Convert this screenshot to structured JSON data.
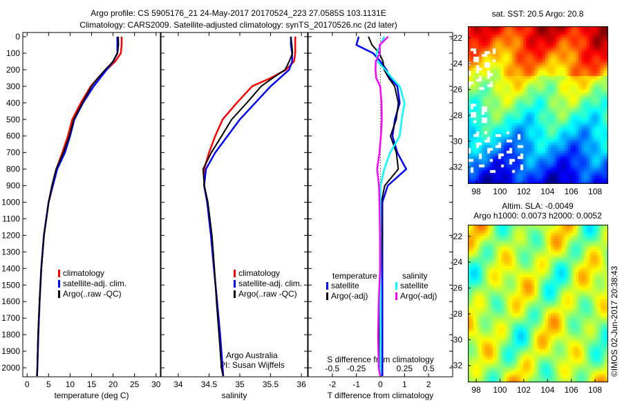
{
  "title_line1": "Argo profile: CS 5905176_21 24-May-2017 20170524_223 27.0585S 103.1131E",
  "title_line2": "Climatology: CARS2009. Satellite-adjusted climatology: synTS_20170526.nc (2d later)",
  "credit": "Argo Australia",
  "pi": "PI: Susan Wijffels",
  "stamp": "©IMOS 02-Jun-2017 20:38:43",
  "chart_data": [
    {
      "type": "line",
      "name": "temperature",
      "xlabel": "temperature (deg C)",
      "xlim": [
        -1,
        31
      ],
      "xticks": [
        "0",
        "5",
        "10",
        "15",
        "20",
        "25",
        "30"
      ],
      "ylim": [
        0,
        2070
      ],
      "yticks": [
        "0",
        "100",
        "200",
        "300",
        "400",
        "500",
        "600",
        "700",
        "800",
        "900",
        "1000",
        "1100",
        "1200",
        "1300",
        "1400",
        "1500",
        "1600",
        "1700",
        "1800",
        "1900",
        "2000"
      ],
      "depth": [
        0,
        50,
        100,
        150,
        200,
        250,
        300,
        400,
        500,
        600,
        700,
        800,
        900,
        1000,
        1200,
        1400,
        1600,
        1800,
        2000,
        2050
      ],
      "legend": [
        "climatology",
        "satellite-adj. clim.",
        "Argo(..raw -QC)"
      ],
      "series": [
        {
          "name": "climatology",
          "color": "#ff0000",
          "values": [
            22,
            22,
            21.8,
            20.5,
            18.5,
            16.5,
            14.8,
            12.5,
            10.5,
            9.5,
            8.2,
            6.8,
            5.8,
            5,
            3.9,
            3.3,
            2.9,
            2.6,
            2.4,
            2.3
          ]
        },
        {
          "name": "satellite-adj. clim.",
          "color": "#0000ff",
          "values": [
            21,
            21,
            21,
            20,
            18.5,
            17,
            15.5,
            13,
            11,
            10,
            8.8,
            7,
            6,
            5,
            3.9,
            3.3,
            2.9,
            2.6,
            2.4,
            2.3
          ]
        },
        {
          "name": "Argo(..raw -QC)",
          "color": "#000000",
          "values": [
            21.2,
            21.2,
            21,
            20,
            18.2,
            16.5,
            15,
            12.8,
            10.8,
            9.8,
            8.5,
            6.8,
            5.8,
            5,
            3.9,
            3.3,
            2.9,
            2.6,
            2.4,
            2.3
          ]
        }
      ]
    },
    {
      "type": "line",
      "name": "salinity",
      "xlabel": "salinity",
      "xlim": [
        33.72,
        36.1
      ],
      "xticks": [
        "34",
        "34.5",
        "35",
        "35.5",
        "36"
      ],
      "ylim": [
        0,
        2070
      ],
      "depth": [
        0,
        50,
        100,
        150,
        200,
        250,
        300,
        400,
        500,
        600,
        700,
        800,
        900,
        1000,
        1200,
        1400,
        1600,
        1800,
        2000,
        2050
      ],
      "legend": [
        "climatology",
        "satellite-adj. clim.",
        "Argo(..raw -QC)"
      ],
      "series": [
        {
          "name": "climatology",
          "color": "#ff0000",
          "values": [
            35.9,
            35.9,
            35.9,
            35.88,
            35.75,
            35.5,
            35.2,
            34.95,
            34.72,
            34.6,
            34.5,
            34.42,
            34.42,
            34.47,
            34.53,
            34.58,
            34.63,
            34.68,
            34.72,
            34.73
          ]
        },
        {
          "name": "satellite-adj. clim.",
          "color": "#0000ff",
          "values": [
            35.83,
            35.83,
            35.85,
            35.85,
            35.8,
            35.65,
            35.5,
            35.25,
            35,
            34.8,
            34.6,
            34.45,
            34.42,
            34.47,
            34.53,
            34.58,
            34.63,
            34.68,
            34.72,
            34.73
          ]
        },
        {
          "name": "Argo(..raw -QC)",
          "color": "#000000",
          "values": [
            35.83,
            35.83,
            35.84,
            35.8,
            35.75,
            35.55,
            35.35,
            35.1,
            34.85,
            34.7,
            34.55,
            34.42,
            34.43,
            34.47,
            34.53,
            34.58,
            34.63,
            34.68,
            34.71,
            34.72
          ]
        }
      ]
    },
    {
      "type": "line",
      "name": "difference",
      "xlabel": "T difference from climatology",
      "x2label": "S difference from climatology",
      "xlim": [
        -3,
        3
      ],
      "xticks": [
        "-2",
        "-1",
        "0",
        "1",
        "2"
      ],
      "x2ticks": [
        "-0.5",
        "-0.25",
        "0",
        "0.25",
        "0.5"
      ],
      "ylim": [
        0,
        2070
      ],
      "depth": [
        0,
        50,
        100,
        150,
        200,
        250,
        300,
        400,
        500,
        600,
        700,
        800,
        900,
        1000,
        1200,
        1400,
        1600,
        1800,
        2000,
        2050
      ],
      "legend_headers": [
        "temperature",
        "salinity"
      ],
      "legend": [
        "satellite",
        "Argo(-adj)",
        "satellite",
        "Argo(-adj)"
      ],
      "series": [
        {
          "name": "T satellite",
          "color": "#0000ff",
          "values": [
            -0.9,
            -1,
            -0.3,
            0,
            0.25,
            0.4,
            0.7,
            0.8,
            0.6,
            0.5,
            0.7,
            1.07,
            0.3,
            0.08,
            0.08,
            0.08,
            0.08,
            0.08,
            0.08,
            0.08
          ]
        },
        {
          "name": "T Argo(-adj)",
          "color": "#000000",
          "values": [
            -0.5,
            -0.4,
            -0.1,
            0.1,
            0.2,
            0.4,
            0.6,
            0.7,
            0.6,
            0.4,
            0.7,
            0.8,
            0.2,
            0,
            0,
            0,
            0,
            0,
            0,
            0
          ]
        },
        {
          "name": "S satellite",
          "color": "#00ffff",
          "values": [
            0.04,
            0,
            -0.04,
            -0.03,
            0.05,
            0.12,
            0.2,
            0.25,
            0.22,
            0.2,
            0.1,
            0.04,
            0,
            0,
            0,
            0,
            0,
            0,
            0,
            0
          ]
        },
        {
          "name": "S Argo(-adj)",
          "color": "#ff00ff",
          "values": [
            0.08,
            -0.02,
            -0.02,
            -0.05,
            -0.04,
            -0.03,
            0,
            0,
            0,
            0,
            0,
            -0.02,
            -0.01,
            -0.02,
            -0.02,
            -0.01,
            -0.01,
            -0.01,
            -0.01,
            -0.01
          ]
        }
      ]
    },
    {
      "type": "heatmap",
      "name": "sst-map",
      "title": "sat. SST: 20.5 Argo: 20.8",
      "xticks": [
        "98",
        "100",
        "102",
        "104",
        "106",
        "108"
      ],
      "yticks": [
        "-22",
        "-24",
        "-26",
        "-28",
        "-30",
        "-32"
      ]
    },
    {
      "type": "heatmap",
      "name": "sla-map",
      "title1": "Altim. SLA: -0.0049",
      "title2": "Argo h1000: 0.0073 h2000: 0.0052",
      "xticks": [
        "98",
        "100",
        "102",
        "104",
        "106",
        "108"
      ],
      "yticks": [
        "-22",
        "-24",
        "-26",
        "-28",
        "-30",
        "-32"
      ]
    }
  ]
}
